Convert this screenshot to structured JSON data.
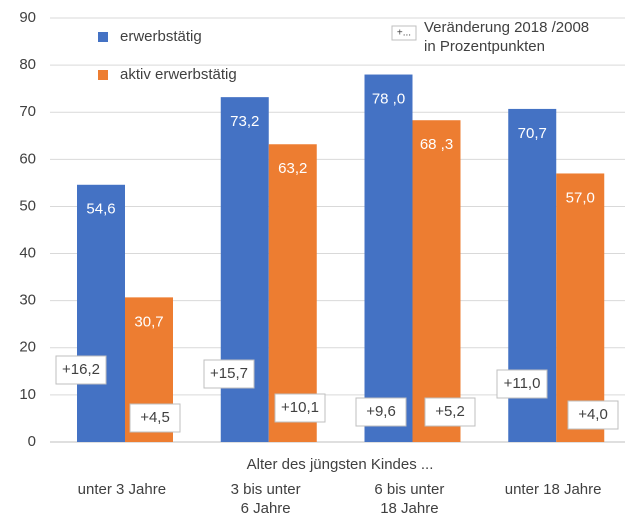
{
  "chart_data": {
    "type": "bar",
    "categories": [
      "unter 3 Jahre",
      "3 bis unter\n6 Jahre",
      "6 bis unter\n18 Jahre",
      "unter 18 Jahre"
    ],
    "x_label": "Alter des jüngsten Kindes ...",
    "series": [
      {
        "name": "erwerbstätig",
        "color": "#4472c4",
        "values": [
          54.6,
          73.2,
          78.0,
          70.7
        ],
        "value_labels": [
          "54,6",
          "73,2",
          "78 ,0",
          "70,7"
        ],
        "changes": [
          16.2,
          15.7,
          9.6,
          11.0
        ],
        "change_labels": [
          "+16,2",
          "+15,7",
          "+9,6",
          "+11,0"
        ]
      },
      {
        "name": "aktiv erwerbstätig",
        "color": "#ed7d31",
        "values": [
          30.7,
          63.2,
          68.3,
          57.0
        ],
        "value_labels": [
          "30,7",
          "63,2",
          "68 ,3",
          "57,0"
        ],
        "changes": [
          4.5,
          10.1,
          5.2,
          4.0
        ],
        "change_labels": [
          "+4,5",
          "+10,1",
          "+5,2",
          "+4,0"
        ]
      }
    ],
    "change_legend_symbol": "+...",
    "change_legend": "Veränderung 2018 /2008\nin Prozentpunkten",
    "ylim": [
      0,
      90
    ],
    "yticks": [
      0,
      10,
      20,
      30,
      40,
      50,
      60,
      70,
      80,
      90
    ],
    "grid": true
  }
}
